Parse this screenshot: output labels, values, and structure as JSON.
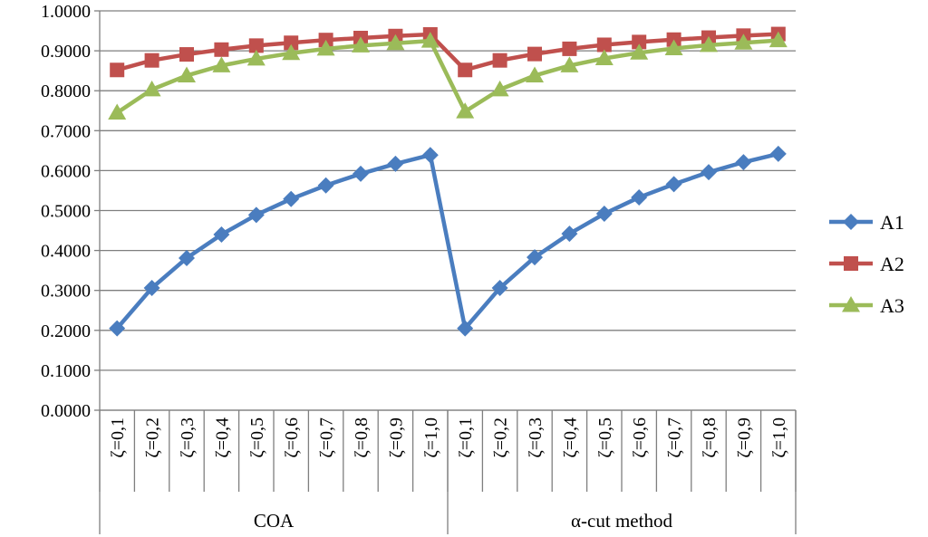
{
  "chart_data": {
    "type": "line",
    "title": "",
    "xlabel": "",
    "ylabel": "",
    "ylim": [
      0,
      1
    ],
    "y_tick_labels": [
      "0.0000",
      "0.1000",
      "0.2000",
      "0.3000",
      "0.4000",
      "0.5000",
      "0.6000",
      "0.7000",
      "0.8000",
      "0.9000",
      "1.0000"
    ],
    "grid": true,
    "legend_position": "right",
    "categories": [
      "ζ=0,1",
      "ζ=0,2",
      "ζ=0,3",
      "ζ=0,4",
      "ζ=0,5",
      "ζ=0,6",
      "ζ=0,7",
      "ζ=0,8",
      "ζ=0,9",
      "ζ=1,0",
      "ζ=0,1",
      "ζ=0,2",
      "ζ=0,3",
      "ζ=0,4",
      "ζ=0,5",
      "ζ=0,6",
      "ζ=0,7",
      "ζ=0,8",
      "ζ=0,9",
      "ζ=1,0"
    ],
    "groups": [
      {
        "label": "COA",
        "count": 10
      },
      {
        "label": "α-cut method",
        "count": 10
      }
    ],
    "series": [
      {
        "name": "A1",
        "color": "#4a7dbf",
        "marker": "diamond",
        "values": [
          0.205,
          0.306,
          0.381,
          0.44,
          0.489,
          0.529,
          0.563,
          0.592,
          0.617,
          0.639,
          0.205,
          0.306,
          0.383,
          0.442,
          0.492,
          0.533,
          0.566,
          0.596,
          0.621,
          0.642
        ]
      },
      {
        "name": "A2",
        "color": "#c0504d",
        "marker": "square",
        "values": [
          0.852,
          0.876,
          0.891,
          0.903,
          0.913,
          0.92,
          0.927,
          0.932,
          0.937,
          0.941,
          0.852,
          0.876,
          0.892,
          0.905,
          0.915,
          0.922,
          0.928,
          0.933,
          0.938,
          0.942
        ]
      },
      {
        "name": "A3",
        "color": "#9bbb59",
        "marker": "triangle",
        "values": [
          0.745,
          0.803,
          0.838,
          0.863,
          0.88,
          0.894,
          0.905,
          0.913,
          0.919,
          0.925,
          0.748,
          0.803,
          0.838,
          0.863,
          0.881,
          0.895,
          0.906,
          0.914,
          0.92,
          0.926
        ]
      }
    ]
  }
}
